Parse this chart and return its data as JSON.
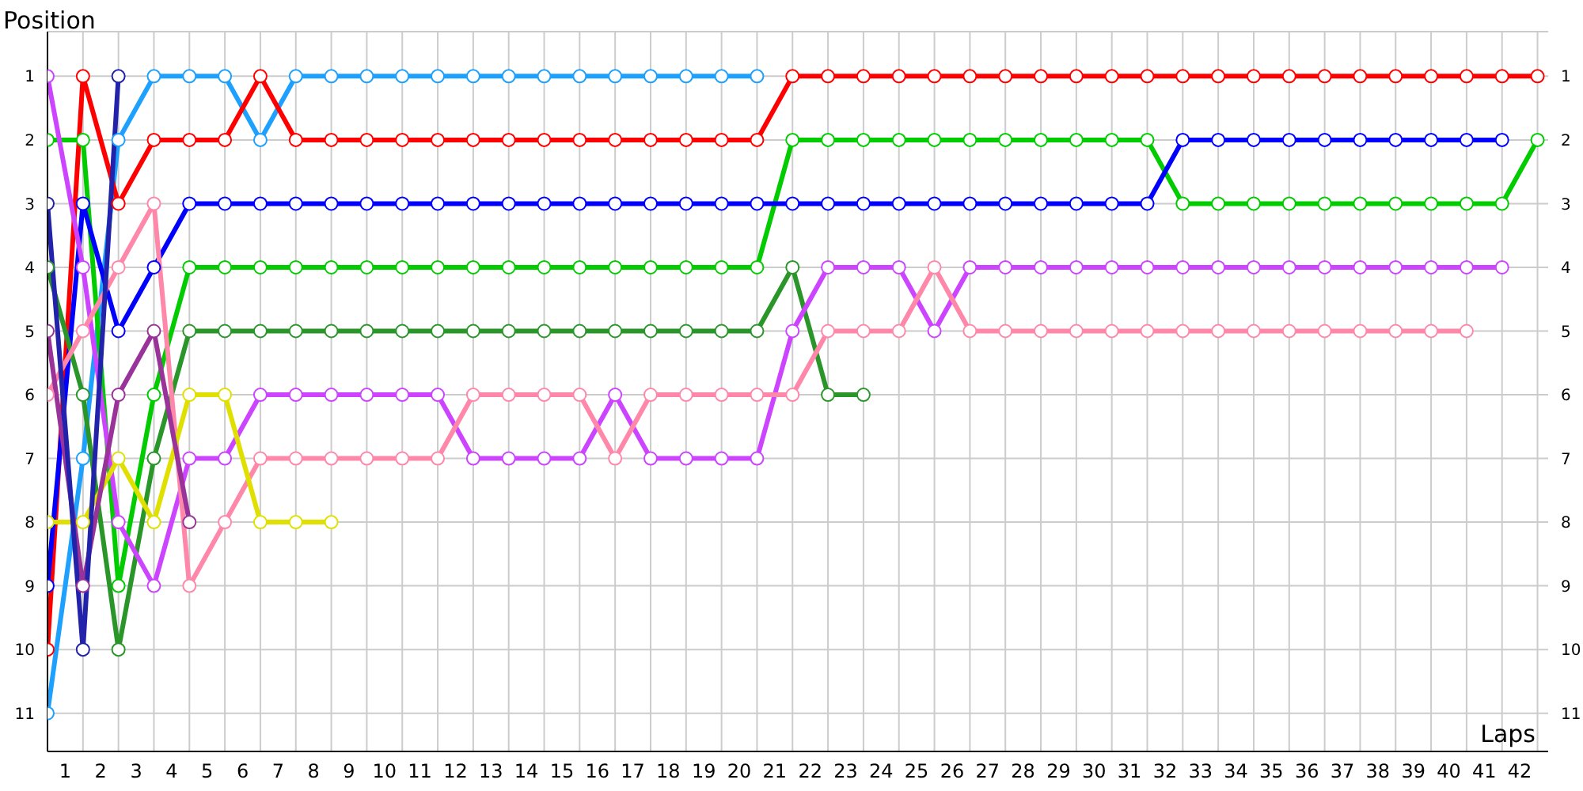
{
  "chart_data": {
    "type": "line",
    "xlabel": "Laps",
    "ylabel": "Position",
    "marker": "circle",
    "grid": true,
    "x": [
      0,
      1,
      2,
      3,
      4,
      5,
      6,
      7,
      8,
      9,
      10,
      11,
      12,
      13,
      14,
      15,
      16,
      17,
      18,
      19,
      20,
      21,
      22,
      23,
      24,
      25,
      26,
      27,
      28,
      29,
      30,
      31,
      32,
      33,
      34,
      35,
      36,
      37,
      38,
      39,
      40,
      41,
      42
    ],
    "xlim": [
      0,
      42.3
    ],
    "xticks": [
      {
        "value": 0.5,
        "label": "1"
      },
      {
        "value": 1.5,
        "label": "2"
      },
      {
        "value": 2.5,
        "label": "3"
      },
      {
        "value": 3.5,
        "label": "4"
      },
      {
        "value": 4.5,
        "label": "5"
      },
      {
        "value": 5.5,
        "label": "6"
      },
      {
        "value": 6.5,
        "label": "7"
      },
      {
        "value": 7.5,
        "label": "8"
      },
      {
        "value": 8.5,
        "label": "9"
      },
      {
        "value": 9.5,
        "label": "10"
      },
      {
        "value": 10.5,
        "label": "11"
      },
      {
        "value": 11.5,
        "label": "12"
      },
      {
        "value": 12.5,
        "label": "13"
      },
      {
        "value": 13.5,
        "label": "14"
      },
      {
        "value": 14.5,
        "label": "15"
      },
      {
        "value": 15.5,
        "label": "16"
      },
      {
        "value": 16.5,
        "label": "17"
      },
      {
        "value": 17.5,
        "label": "18"
      },
      {
        "value": 18.5,
        "label": "19"
      },
      {
        "value": 19.5,
        "label": "20"
      },
      {
        "value": 20.5,
        "label": "21"
      },
      {
        "value": 21.5,
        "label": "22"
      },
      {
        "value": 22.5,
        "label": "23"
      },
      {
        "value": 23.5,
        "label": "24"
      },
      {
        "value": 24.5,
        "label": "25"
      },
      {
        "value": 25.5,
        "label": "26"
      },
      {
        "value": 26.5,
        "label": "27"
      },
      {
        "value": 27.5,
        "label": "28"
      },
      {
        "value": 28.5,
        "label": "29"
      },
      {
        "value": 29.5,
        "label": "30"
      },
      {
        "value": 30.5,
        "label": "31"
      },
      {
        "value": 31.5,
        "label": "32"
      },
      {
        "value": 32.5,
        "label": "33"
      },
      {
        "value": 33.5,
        "label": "34"
      },
      {
        "value": 34.5,
        "label": "35"
      },
      {
        "value": 35.5,
        "label": "36"
      },
      {
        "value": 36.5,
        "label": "37"
      },
      {
        "value": 37.5,
        "label": "38"
      },
      {
        "value": 38.5,
        "label": "39"
      },
      {
        "value": 39.5,
        "label": "40"
      },
      {
        "value": 40.5,
        "label": "41"
      },
      {
        "value": 41.5,
        "label": "42"
      }
    ],
    "ylim": [
      11.6,
      0.3
    ],
    "yticks": [
      1,
      2,
      3,
      4,
      5,
      6,
      7,
      8,
      9,
      10,
      11
    ],
    "y2lim": [
      11.6,
      0.3
    ],
    "y2ticks": [
      1,
      2,
      3,
      4,
      5,
      6,
      7,
      8,
      9,
      10,
      11
    ],
    "series": [
      {
        "color": "#1ea0ff",
        "values": [
          11,
          7,
          2,
          1,
          1,
          1,
          2,
          1,
          1,
          1,
          1,
          1,
          1,
          1,
          1,
          1,
          1,
          1,
          1,
          1,
          1,
          null,
          null,
          null,
          null,
          null,
          null,
          null,
          null,
          null,
          null,
          null,
          null,
          null,
          null,
          null,
          null,
          null,
          null,
          null,
          null,
          null,
          null
        ]
      },
      {
        "color": "#ff0000",
        "values": [
          10,
          1,
          3,
          2,
          2,
          2,
          1,
          2,
          2,
          2,
          2,
          2,
          2,
          2,
          2,
          2,
          2,
          2,
          2,
          2,
          2,
          1,
          1,
          1,
          1,
          1,
          1,
          1,
          1,
          1,
          1,
          1,
          1,
          1,
          1,
          1,
          1,
          1,
          1,
          1,
          1,
          1,
          1
        ]
      },
      {
        "color": "#00cc00",
        "values": [
          2,
          2,
          9,
          6,
          4,
          4,
          4,
          4,
          4,
          4,
          4,
          4,
          4,
          4,
          4,
          4,
          4,
          4,
          4,
          4,
          4,
          2,
          2,
          2,
          2,
          2,
          2,
          2,
          2,
          2,
          2,
          2,
          3,
          3,
          3,
          3,
          3,
          3,
          3,
          3,
          3,
          3,
          2
        ]
      },
      {
        "color": "#0000ff",
        "values": [
          9,
          3,
          5,
          4,
          3,
          3,
          3,
          3,
          3,
          3,
          3,
          3,
          3,
          3,
          3,
          3,
          3,
          3,
          3,
          3,
          3,
          3,
          3,
          3,
          3,
          3,
          3,
          3,
          3,
          3,
          3,
          3,
          2,
          2,
          2,
          2,
          2,
          2,
          2,
          2,
          2,
          2,
          null
        ]
      },
      {
        "color": "#2a962a",
        "values": [
          4,
          6,
          10,
          7,
          5,
          5,
          5,
          5,
          5,
          5,
          5,
          5,
          5,
          5,
          5,
          5,
          5,
          5,
          5,
          5,
          5,
          4,
          6,
          6,
          null,
          null,
          null,
          null,
          null,
          null,
          null,
          null,
          null,
          null,
          null,
          null,
          null,
          null,
          null,
          null,
          null,
          null,
          null
        ]
      },
      {
        "color": "#cc44ff",
        "values": [
          1,
          4,
          8,
          9,
          7,
          7,
          6,
          6,
          6,
          6,
          6,
          6,
          7,
          7,
          7,
          7,
          6,
          7,
          7,
          7,
          7,
          5,
          4,
          4,
          4,
          5,
          4,
          4,
          4,
          4,
          4,
          4,
          4,
          4,
          4,
          4,
          4,
          4,
          4,
          4,
          4,
          4,
          null
        ]
      },
      {
        "color": "#ff88aa",
        "values": [
          6,
          5,
          4,
          3,
          9,
          8,
          7,
          7,
          7,
          7,
          7,
          7,
          6,
          6,
          6,
          6,
          7,
          6,
          6,
          6,
          6,
          6,
          5,
          5,
          5,
          4,
          5,
          5,
          5,
          5,
          5,
          5,
          5,
          5,
          5,
          5,
          5,
          5,
          5,
          5,
          5,
          null,
          null
        ]
      },
      {
        "color": "#e0e000",
        "values": [
          8,
          8,
          7,
          8,
          6,
          6,
          8,
          8,
          8,
          null,
          null,
          null,
          null,
          null,
          null,
          null,
          null,
          null,
          null,
          null,
          null,
          null,
          null,
          null,
          null,
          null,
          null,
          null,
          null,
          null,
          null,
          null,
          null,
          null,
          null,
          null,
          null,
          null,
          null,
          null,
          null,
          null,
          null
        ]
      },
      {
        "color": "#993399",
        "values": [
          5,
          9,
          6,
          5,
          8,
          null,
          null,
          null,
          null,
          null,
          null,
          null,
          null,
          null,
          null,
          null,
          null,
          null,
          null,
          null,
          null,
          null,
          null,
          null,
          null,
          null,
          null,
          null,
          null,
          null,
          null,
          null,
          null,
          null,
          null,
          null,
          null,
          null,
          null,
          null,
          null,
          null,
          null
        ]
      },
      {
        "color": "#2222aa",
        "values": [
          3,
          10,
          1,
          null,
          null,
          null,
          null,
          null,
          null,
          null,
          null,
          null,
          null,
          null,
          null,
          null,
          null,
          null,
          null,
          null,
          null,
          null,
          null,
          null,
          null,
          null,
          null,
          null,
          null,
          null,
          null,
          null,
          null,
          null,
          null,
          null,
          null,
          null,
          null,
          null,
          null,
          null,
          null
        ]
      }
    ]
  }
}
